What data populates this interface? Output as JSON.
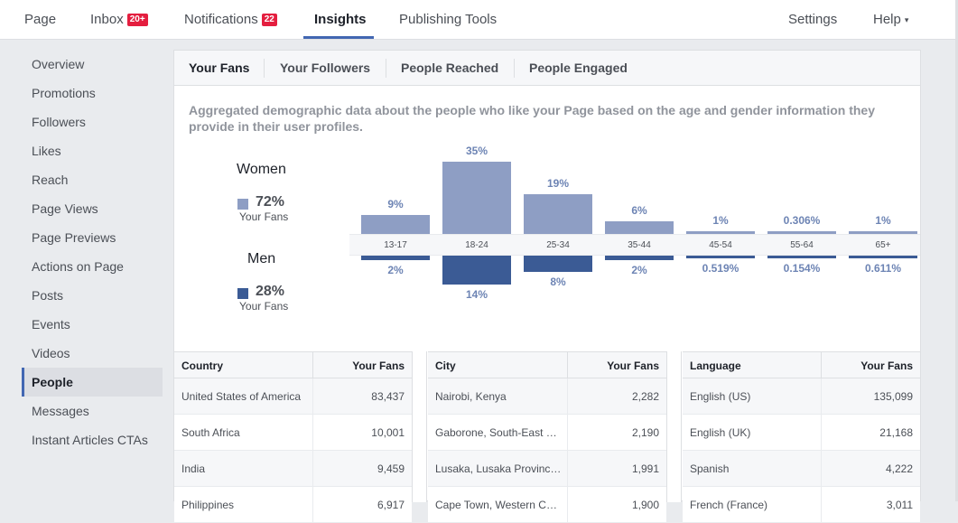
{
  "topnav": {
    "page": "Page",
    "inbox": "Inbox",
    "inbox_badge": "20+",
    "notifications": "Notifications",
    "notifications_badge": "22",
    "insights": "Insights",
    "publishing_tools": "Publishing Tools",
    "settings": "Settings",
    "help": "Help",
    "help_caret": "▾"
  },
  "sidebar": {
    "items": [
      {
        "label": "Overview"
      },
      {
        "label": "Promotions"
      },
      {
        "label": "Followers"
      },
      {
        "label": "Likes"
      },
      {
        "label": "Reach"
      },
      {
        "label": "Page Views"
      },
      {
        "label": "Page Previews"
      },
      {
        "label": "Actions on Page"
      },
      {
        "label": "Posts"
      },
      {
        "label": "Events"
      },
      {
        "label": "Videos"
      },
      {
        "label": "People"
      },
      {
        "label": "Messages"
      },
      {
        "label": "Instant Articles CTAs"
      }
    ],
    "active": "People"
  },
  "tabs": [
    {
      "label": "Your Fans"
    },
    {
      "label": "Your Followers"
    },
    {
      "label": "People Reached"
    },
    {
      "label": "People Engaged"
    }
  ],
  "description": "Aggregated demographic data about the people who like your Page based on the age and gender information they provide in their user profiles.",
  "legend": {
    "women": {
      "title": "Women",
      "pct": "72%",
      "sub": "Your Fans",
      "color": "#8e9ec4"
    },
    "men": {
      "title": "Men",
      "pct": "28%",
      "sub": "Your Fans",
      "color": "#3b5b95"
    }
  },
  "chart_data": {
    "type": "bar",
    "categories": [
      "13-17",
      "18-24",
      "25-34",
      "35-44",
      "45-54",
      "55-64",
      "65+"
    ],
    "series": [
      {
        "name": "Women",
        "values": [
          9,
          35,
          19,
          6,
          1,
          0.306,
          1
        ],
        "labels": [
          "9%",
          "35%",
          "19%",
          "6%",
          "1%",
          "0.306%",
          "1%"
        ]
      },
      {
        "name": "Men",
        "values": [
          2,
          14,
          8,
          2,
          0.519,
          0.154,
          0.611
        ],
        "labels": [
          "2%",
          "14%",
          "8%",
          "2%",
          "0.519%",
          "0.154%",
          "0.611%"
        ]
      }
    ],
    "xlabel": "",
    "ylabel": ""
  },
  "tables": [
    {
      "col1": "Country",
      "col2": "Your Fans",
      "rows": [
        {
          "name": "United States of America",
          "value": "83,437"
        },
        {
          "name": "South Africa",
          "value": "10,001"
        },
        {
          "name": "India",
          "value": "9,459"
        },
        {
          "name": "Philippines",
          "value": "6,917"
        }
      ]
    },
    {
      "col1": "City",
      "col2": "Your Fans",
      "rows": [
        {
          "name": "Nairobi, Kenya",
          "value": "2,282"
        },
        {
          "name": "Gaborone, South-East …",
          "value": "2,190"
        },
        {
          "name": "Lusaka, Lusaka Provinc…",
          "value": "1,991"
        },
        {
          "name": "Cape Town, Western C…",
          "value": "1,900"
        }
      ]
    },
    {
      "col1": "Language",
      "col2": "Your Fans",
      "rows": [
        {
          "name": "English (US)",
          "value": "135,099"
        },
        {
          "name": "English (UK)",
          "value": "21,168"
        },
        {
          "name": "Spanish",
          "value": "4,222"
        },
        {
          "name": "French (France)",
          "value": "3,011"
        }
      ]
    }
  ]
}
